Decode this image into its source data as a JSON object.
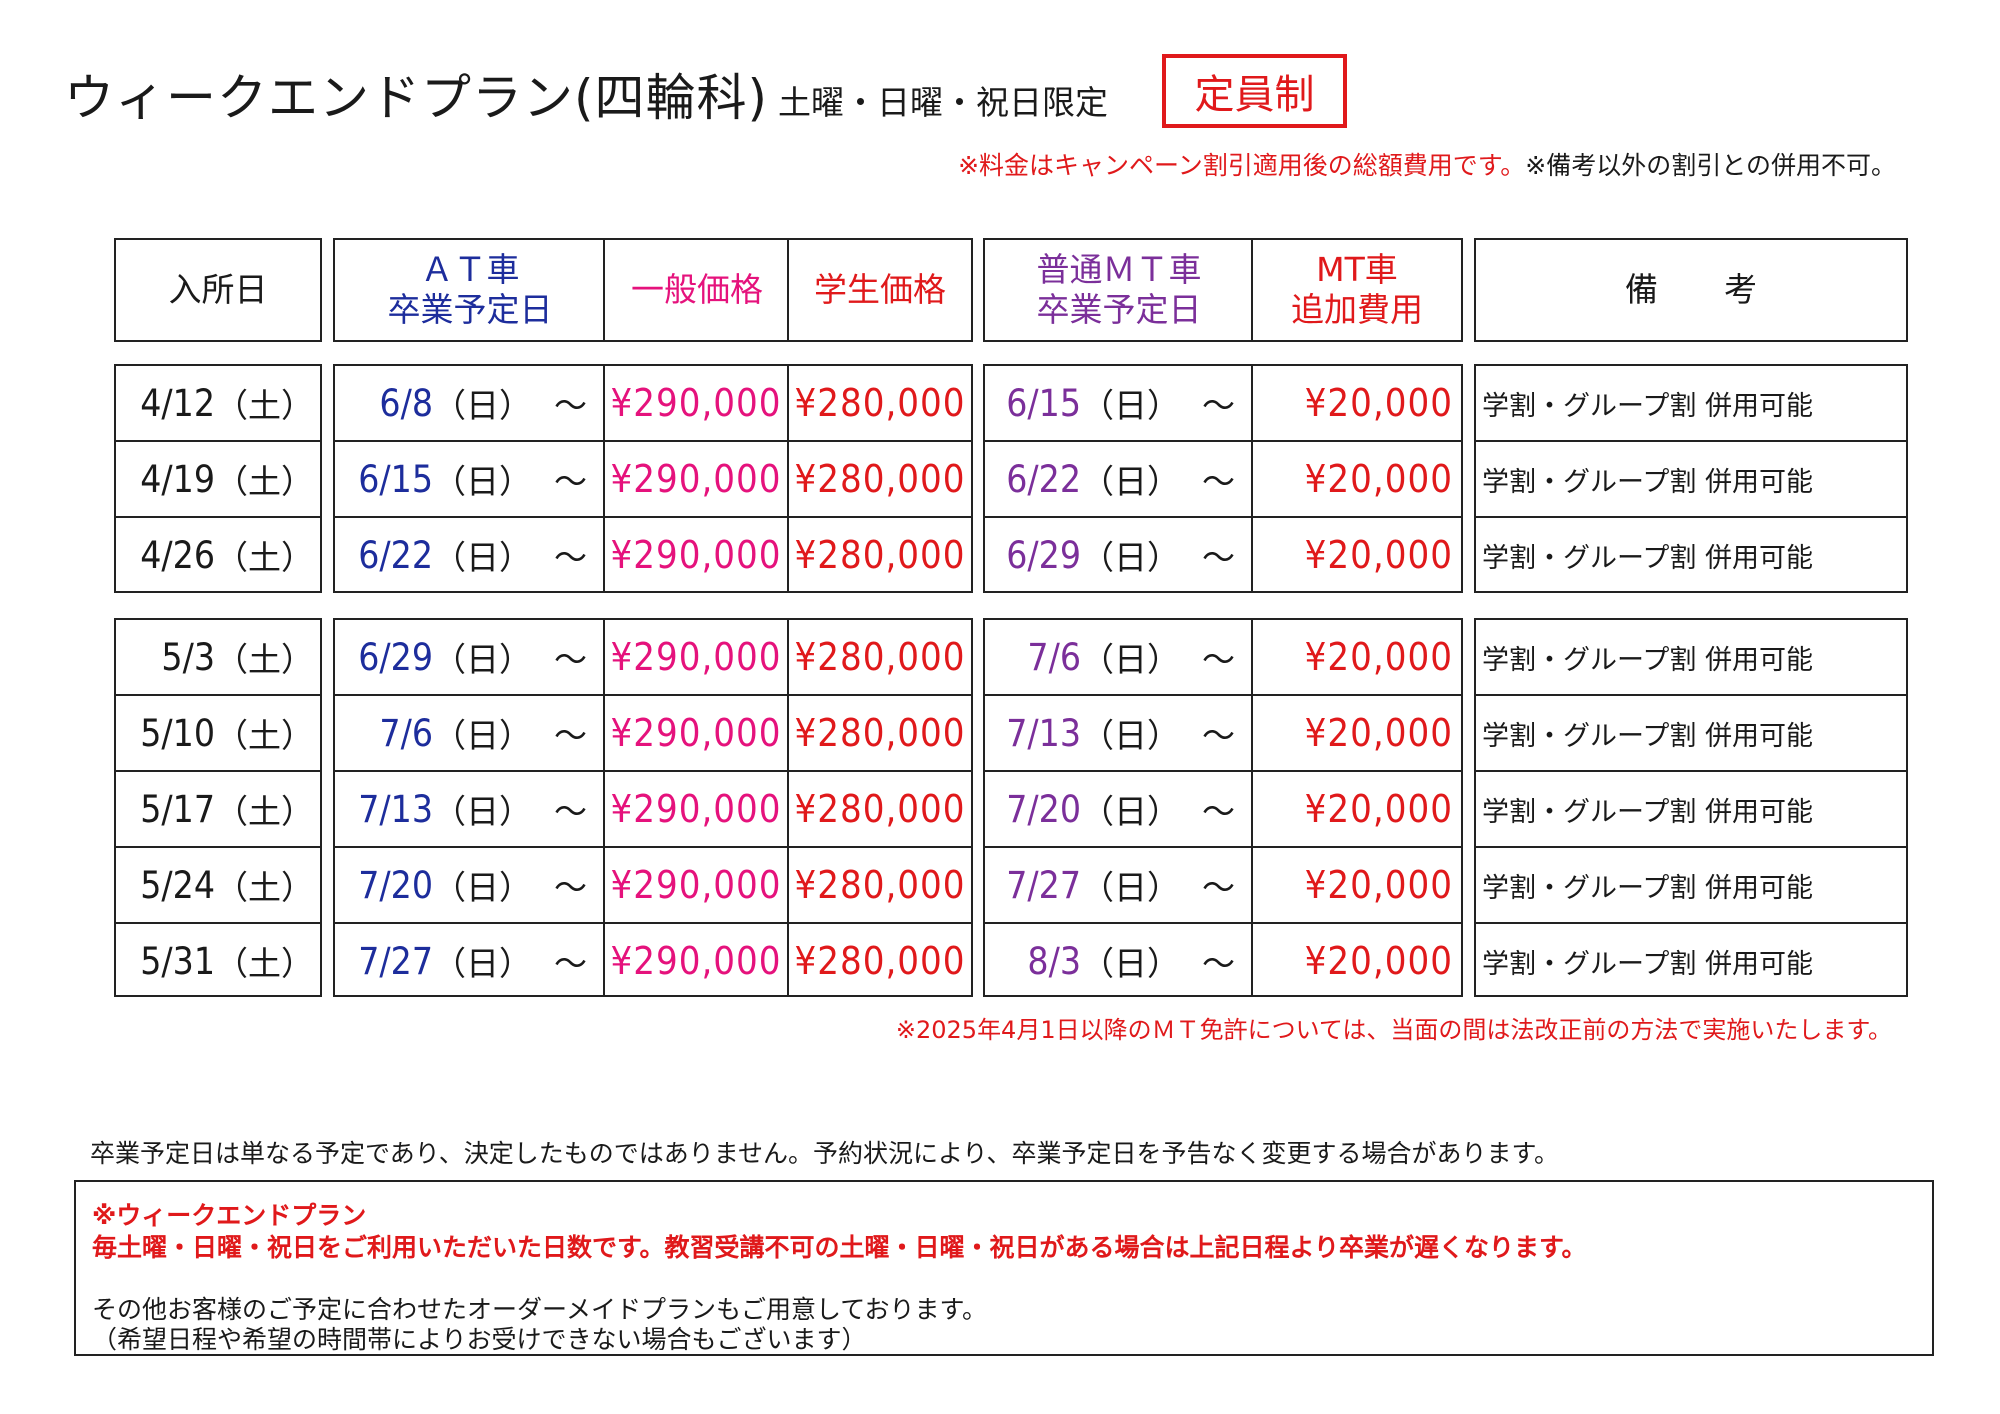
{
  "header": {
    "title": "ウィークエンドプラン(四輪科)",
    "subtitle": "土曜・日曜・祝日限定",
    "badge": "定員制",
    "note_red": "※料金はキャンペーン割引適用後の総額費用です。",
    "note_black": "※備考以外の割引との併用不可。"
  },
  "table": {
    "headers": {
      "entry": "入所日",
      "at_line1": "ＡＴ車",
      "at_line2": "卒業予定日",
      "general": "一般価格",
      "student": "学生価格",
      "mt_line1": "普通ＭＴ車",
      "mt_line2": "卒業予定日",
      "mtfee_line1": "MT車",
      "mtfee_line2": "追加費用",
      "remarks": "備　　考"
    },
    "day_sat": "（土）",
    "day_sun": "（日）",
    "tilde": "～",
    "group1": [
      {
        "entry": "4/12",
        "at": "6/8",
        "general": "¥290,000",
        "student": "¥280,000",
        "mt": "6/15",
        "mtfee": "¥20,000",
        "remarks": "学割・グループ割 併用可能"
      },
      {
        "entry": "4/19",
        "at": "6/15",
        "general": "¥290,000",
        "student": "¥280,000",
        "mt": "6/22",
        "mtfee": "¥20,000",
        "remarks": "学割・グループ割 併用可能"
      },
      {
        "entry": "4/26",
        "at": "6/22",
        "general": "¥290,000",
        "student": "¥280,000",
        "mt": "6/29",
        "mtfee": "¥20,000",
        "remarks": "学割・グループ割 併用可能"
      }
    ],
    "group2": [
      {
        "entry": "5/3",
        "at": "6/29",
        "general": "¥290,000",
        "student": "¥280,000",
        "mt": "7/6",
        "mtfee": "¥20,000",
        "remarks": "学割・グループ割 併用可能"
      },
      {
        "entry": "5/10",
        "at": "7/6",
        "general": "¥290,000",
        "student": "¥280,000",
        "mt": "7/13",
        "mtfee": "¥20,000",
        "remarks": "学割・グループ割 併用可能"
      },
      {
        "entry": "5/17",
        "at": "7/13",
        "general": "¥290,000",
        "student": "¥280,000",
        "mt": "7/20",
        "mtfee": "¥20,000",
        "remarks": "学割・グループ割 併用可能"
      },
      {
        "entry": "5/24",
        "at": "7/20",
        "general": "¥290,000",
        "student": "¥280,000",
        "mt": "7/27",
        "mtfee": "¥20,000",
        "remarks": "学割・グループ割 併用可能"
      },
      {
        "entry": "5/31",
        "at": "7/27",
        "general": "¥290,000",
        "student": "¥280,000",
        "mt": "8/3",
        "mtfee": "¥20,000",
        "remarks": "学割・グループ割 併用可能"
      }
    ]
  },
  "note_mt": "※2025年4月1日以降のＭＴ免許については、当面の間は法改正前の方法で実施いたします。",
  "footer": {
    "disclaimer": "卒業予定日は単なる予定であり、決定したものではありません。予約状況により、卒業予定日を予告なく変更する場合があります。",
    "plan_title": "※ウィークエンドプラン",
    "plan_desc": "毎土曜・日曜・祝日をご利用いただいた日数です。教習受講不可の土曜・日曜・祝日がある場合は上記日程より卒業が遅くなります。",
    "other_line1": "その他お客様のご予定に合わせたオーダーメイドプランもご用意しております。",
    "other_line2": "（希望日程や希望の時間帯によりお受けできない場合もございます）"
  }
}
